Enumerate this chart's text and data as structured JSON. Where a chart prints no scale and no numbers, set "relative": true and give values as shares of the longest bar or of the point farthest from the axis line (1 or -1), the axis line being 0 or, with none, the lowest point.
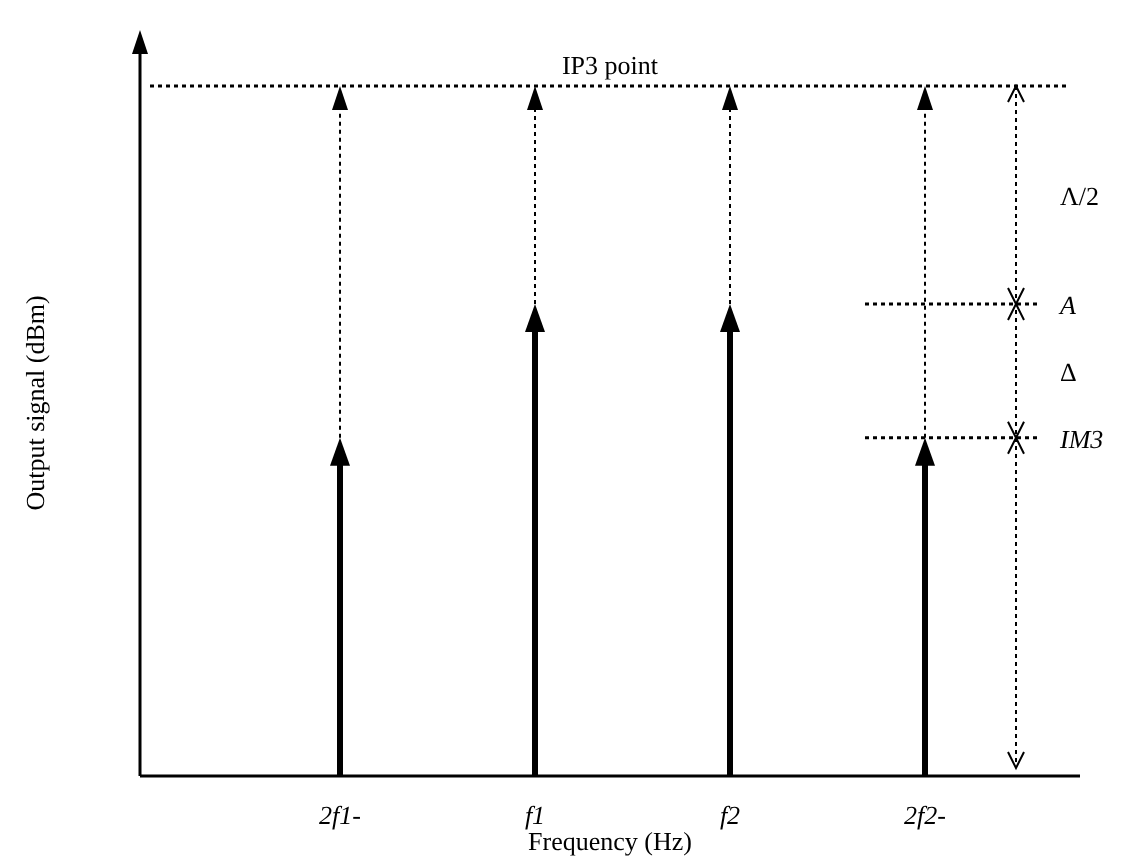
{
  "chart_data": {
    "type": "bar",
    "relative": true,
    "xlabel": "Frequency (Hz)",
    "ylabel": "Output signal (dBm)",
    "categories": [
      "2f1-",
      "f1",
      "f2",
      "2f2-"
    ],
    "values": [
      0.7,
      1,
      1,
      0.7
    ],
    "color": "#000000",
    "annotations": [
      "IP3 point",
      "A",
      "IM3",
      "Λ/2",
      "Δ"
    ]
  }
}
